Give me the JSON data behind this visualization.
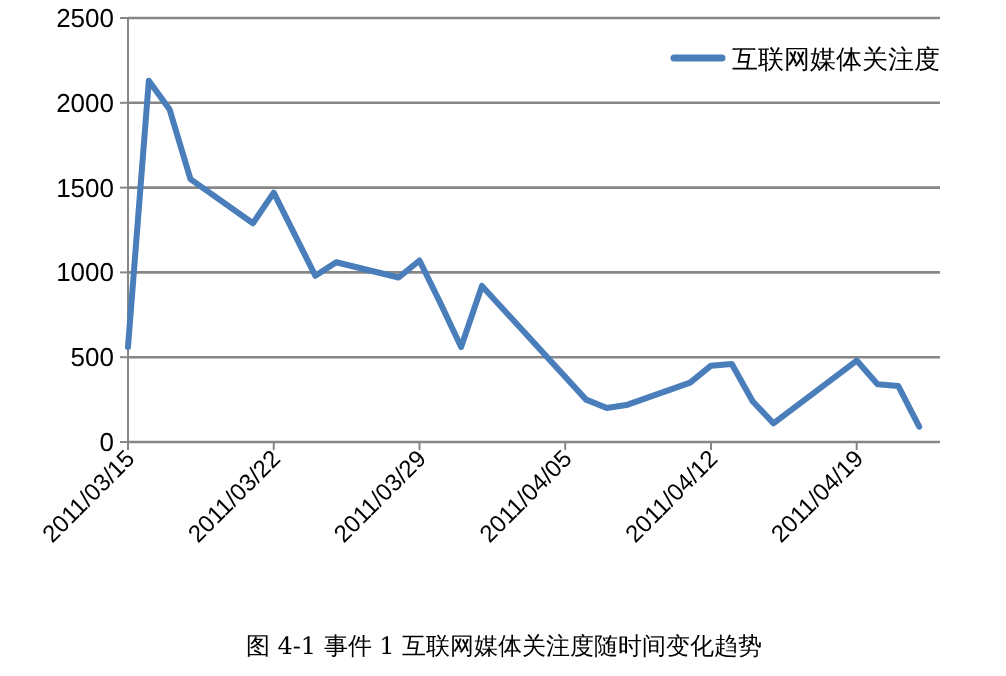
{
  "chart_data": {
    "type": "line",
    "title": "图 4-1  事件 1 互联网媒体关注度随时间变化趋势",
    "x": [
      "2011-03-15",
      "2011-03-16",
      "2011-03-17",
      "2011-03-18",
      "2011-03-21",
      "2011-03-22",
      "2011-03-24",
      "2011-03-25",
      "2011-03-28",
      "2011-03-29",
      "2011-03-30",
      "2011-03-31",
      "2011-04-01",
      "2011-04-06",
      "2011-04-07",
      "2011-04-08",
      "2011-04-11",
      "2011-04-12",
      "2011-04-13",
      "2011-04-14",
      "2011-04-15",
      "2011-04-19",
      "2011-04-20",
      "2011-04-21",
      "2011-04-22"
    ],
    "series": [
      {
        "name": "互联网媒体关注度",
        "color": "#4a7ebb",
        "values": [
          560,
          2130,
          1960,
          1550,
          1290,
          1470,
          980,
          1060,
          970,
          1070,
          820,
          560,
          920,
          250,
          200,
          220,
          350,
          450,
          460,
          240,
          110,
          480,
          340,
          330,
          90
        ]
      }
    ],
    "xlim": [
      "2011-03-15",
      "2011-04-23"
    ],
    "xticks": [
      {
        "value": "2011-03-15",
        "label": "2011/03/15"
      },
      {
        "value": "2011-03-22",
        "label": "2011/03/22"
      },
      {
        "value": "2011-03-29",
        "label": "2011/03/29"
      },
      {
        "value": "2011-04-05",
        "label": "2011/04/05"
      },
      {
        "value": "2011-04-12",
        "label": "2011/04/12"
      },
      {
        "value": "2011-04-19",
        "label": "2011/04/19"
      }
    ],
    "ylim": [
      0,
      2500
    ],
    "yticks": [
      0,
      500,
      1000,
      1500,
      2000,
      2500
    ],
    "grid": "y",
    "legend": "top right",
    "marker": "none",
    "line_style": "solid"
  }
}
